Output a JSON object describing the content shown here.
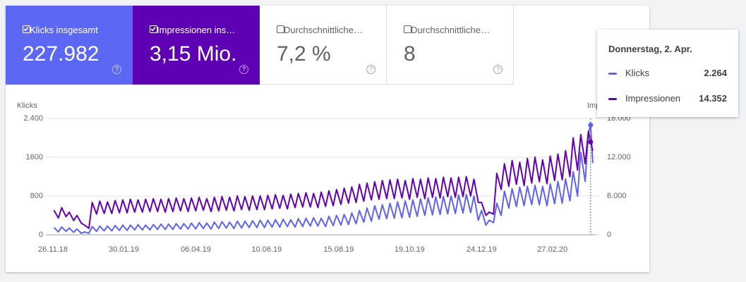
{
  "chart_data": {
    "type": "line",
    "cards": [
      {
        "label": "Klicks insgesamt",
        "value": "227.982",
        "checked": true,
        "color": "#5c68f4"
      },
      {
        "label": "Impressionen ins…",
        "value": "3,15 Mio.",
        "checked": true,
        "color": "#5e00b4"
      },
      {
        "label": "Durchschnittliche…",
        "value": "7,2 %",
        "checked": false,
        "color": "#ffffff"
      },
      {
        "label": "Durchschnittliche…",
        "value": "8",
        "checked": false,
        "color": "#ffffff"
      }
    ],
    "y_label": "Klicks",
    "y2_label": "Impressionen",
    "x": [
      "27.11.18",
      "01.12.18",
      "04.12.18",
      "08.12.18",
      "11.12.18",
      "15.12.18",
      "18.12.18",
      "22.12.18",
      "25.12.18",
      "29.12.18",
      "01.01.19",
      "05.01.19",
      "08.01.19",
      "12.01.19",
      "15.01.19",
      "19.01.19",
      "22.01.19",
      "26.01.19",
      "29.01.19",
      "02.02.19",
      "05.02.19",
      "09.02.19",
      "12.02.19",
      "16.02.19",
      "19.02.19",
      "23.02.19",
      "26.02.19",
      "02.03.19",
      "05.03.19",
      "09.03.19",
      "12.03.19",
      "16.03.19",
      "19.03.19",
      "23.03.19",
      "26.03.19",
      "30.03.19",
      "02.04.19",
      "06.04.19",
      "09.04.19",
      "13.04.19",
      "16.04.19",
      "20.04.19",
      "23.04.19",
      "27.04.19",
      "30.04.19",
      "04.05.19",
      "07.05.19",
      "11.05.19",
      "14.05.19",
      "18.05.19",
      "21.05.19",
      "25.05.19",
      "28.05.19",
      "01.06.19",
      "04.06.19",
      "08.06.19",
      "11.06.19",
      "15.06.19",
      "18.06.19",
      "22.06.19",
      "25.06.19",
      "29.06.19",
      "02.07.19",
      "06.07.19",
      "09.07.19",
      "13.07.19",
      "16.07.19",
      "20.07.19",
      "23.07.19",
      "27.07.19",
      "30.07.19",
      "03.08.19",
      "06.08.19",
      "10.08.19",
      "13.08.19",
      "17.08.19",
      "20.08.19",
      "24.08.19",
      "27.08.19",
      "31.08.19",
      "03.09.19",
      "07.09.19",
      "10.09.19",
      "14.09.19",
      "17.09.19",
      "21.09.19",
      "24.09.19",
      "28.09.19",
      "01.10.19",
      "05.10.19",
      "08.10.19",
      "12.10.19",
      "15.10.19",
      "19.10.19",
      "22.10.19",
      "26.10.19",
      "29.10.19",
      "02.11.19",
      "05.11.19",
      "09.11.19",
      "12.11.19",
      "16.11.19",
      "19.11.19",
      "23.11.19",
      "26.11.19",
      "30.11.19",
      "03.12.19",
      "07.12.19",
      "10.12.19",
      "14.12.19",
      "17.12.19",
      "21.12.19",
      "24.12.19",
      "28.12.19",
      "31.12.19",
      "04.01.20",
      "07.01.20",
      "11.01.20",
      "14.01.20",
      "18.01.20",
      "21.01.20",
      "25.01.20",
      "28.01.20",
      "01.02.20",
      "04.02.20",
      "08.02.20",
      "11.02.20",
      "15.02.20",
      "18.02.20",
      "22.02.20",
      "25.02.20",
      "29.02.20",
      "03.03.20",
      "07.03.20",
      "10.03.20",
      "14.03.20",
      "17.03.20",
      "21.03.20",
      "24.03.20",
      "28.03.20",
      "31.03.20",
      "02.04.20",
      "04.04.20"
    ],
    "series": [
      {
        "name": "Klicks",
        "color": "#5f63ef",
        "values": [
          150,
          60,
          160,
          70,
          140,
          50,
          120,
          30,
          60,
          30,
          170,
          70,
          180,
          80,
          180,
          80,
          190,
          90,
          200,
          90,
          200,
          100,
          210,
          100,
          200,
          100,
          210,
          110,
          220,
          110,
          220,
          110,
          230,
          120,
          230,
          120,
          240,
          120,
          250,
          130,
          240,
          120,
          260,
          130,
          270,
          140,
          260,
          130,
          280,
          140,
          280,
          150,
          290,
          150,
          300,
          150,
          300,
          160,
          310,
          160,
          320,
          170,
          310,
          160,
          330,
          170,
          340,
          180,
          350,
          180,
          340,
          170,
          380,
          190,
          400,
          200,
          420,
          210,
          450,
          230,
          500,
          260,
          550,
          280,
          600,
          320,
          620,
          330,
          650,
          340,
          680,
          350,
          700,
          360,
          720,
          380,
          740,
          400,
          760,
          410,
          780,
          420,
          790,
          430,
          800,
          440,
          820,
          450,
          830,
          460,
          800,
          300,
          500,
          200,
          300,
          250,
          650,
          400,
          900,
          550,
          950,
          580,
          980,
          600,
          1000,
          620,
          1020,
          620,
          1000,
          600,
          1050,
          640,
          1100,
          650,
          1150,
          700,
          1300,
          800,
          1700,
          1100,
          2100,
          2264,
          1480
        ]
      },
      {
        "name": "Impressionen",
        "color": "#6300b0",
        "axis": "y2",
        "values": [
          3800,
          2600,
          4200,
          2800,
          3500,
          2200,
          3000,
          1800,
          1500,
          1000,
          5000,
          3200,
          5200,
          3300,
          5100,
          3300,
          5300,
          3400,
          5400,
          3400,
          5500,
          3500,
          5400,
          3500,
          5500,
          3600,
          5600,
          3600,
          5500,
          3500,
          5600,
          3600,
          5700,
          3700,
          5600,
          3600,
          5700,
          3700,
          5800,
          3800,
          5600,
          3600,
          5800,
          3700,
          5900,
          3800,
          5800,
          3700,
          6000,
          3900,
          5900,
          3800,
          6000,
          3900,
          6000,
          3900,
          6100,
          4000,
          6200,
          4100,
          6100,
          4000,
          6300,
          4200,
          6400,
          4300,
          6500,
          4300,
          6400,
          4200,
          6600,
          4400,
          6800,
          4500,
          7000,
          4700,
          7200,
          4900,
          7400,
          5000,
          7800,
          5200,
          8000,
          5400,
          8200,
          5500,
          8400,
          5600,
          8500,
          5600,
          8600,
          5700,
          8400,
          5500,
          8700,
          5800,
          8600,
          5600,
          8800,
          5800,
          8700,
          5700,
          8900,
          5900,
          8800,
          5800,
          8900,
          5900,
          9000,
          6000,
          8600,
          5000,
          5000,
          3000,
          3500,
          3200,
          9500,
          7000,
          11000,
          7500,
          11500,
          7800,
          11200,
          7600,
          11800,
          8000,
          12000,
          8200,
          11600,
          7900,
          12200,
          8400,
          12500,
          8500,
          13000,
          9000,
          15000,
          10000,
          15500,
          11000,
          16000,
          14352,
          13000
        ]
      }
    ],
    "xlim": [
      "26.11.18",
      "06.04.20"
    ],
    "xticks": [
      "26.11.18",
      "30.01.19",
      "06.04.19",
      "10.06.19",
      "15.08.19",
      "19.10.19",
      "24.12.19",
      "27.02.20"
    ],
    "ylim": [
      0,
      2400
    ],
    "yticks": [
      0,
      800,
      1600,
      {
        "value": 2400,
        "label": "2.400"
      }
    ],
    "y2lim": [
      0,
      18000
    ],
    "y2ticks": [
      0,
      {
        "value": 6000,
        "label": "6.000"
      },
      {
        "value": 12000,
        "label": "12.000"
      },
      {
        "value": 18000,
        "label": "18.000"
      }
    ],
    "grid": true,
    "tooltip": {
      "title": "Donnerstag, 2. Apr.",
      "values": [
        {
          "value": 2264,
          "label": "2.264"
        },
        {
          "value": 14352,
          "label": "14.352"
        }
      ]
    }
  }
}
